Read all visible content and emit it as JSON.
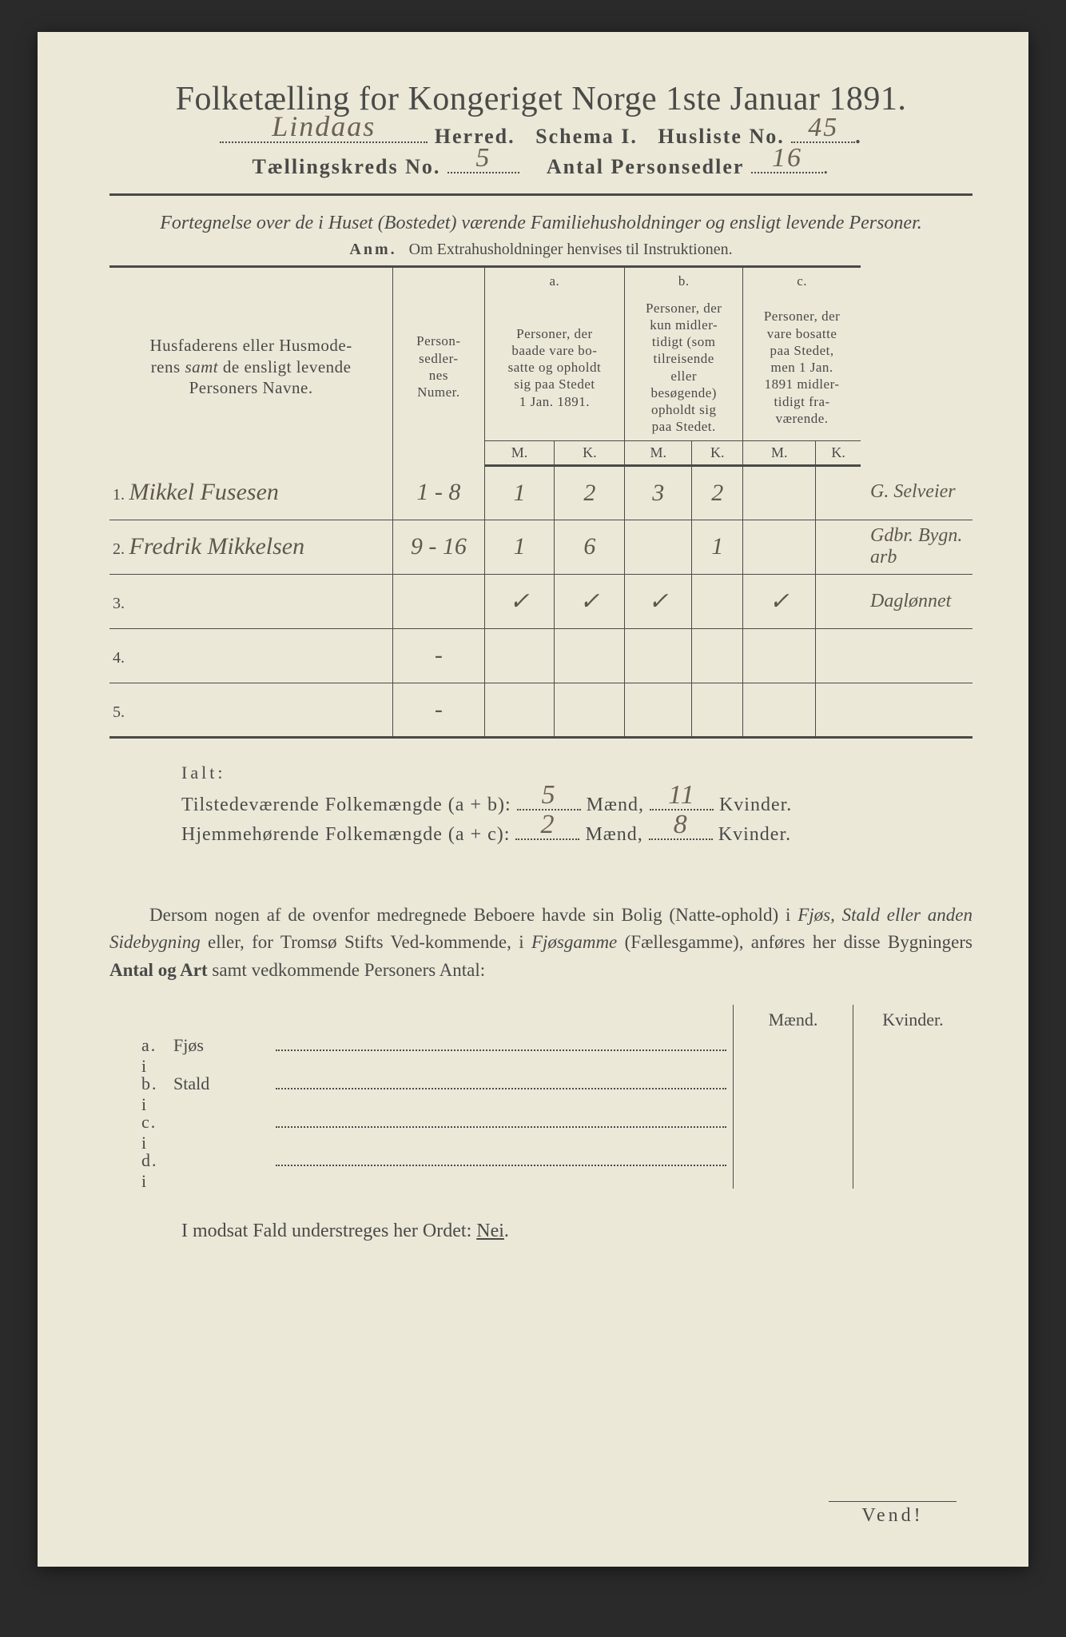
{
  "title": "Folketælling for Kongeriget Norge 1ste Januar 1891.",
  "herred_handwritten": "Lindaas",
  "line2_labels": {
    "herred": "Herred.",
    "schema": "Schema I.",
    "husliste": "Husliste No."
  },
  "husliste_no": "45",
  "line3_labels": {
    "kreds": "Tællingskreds No.",
    "antal": "Antal Personsedler"
  },
  "kreds_no": "5",
  "antal_personsedler": "16",
  "intro": "Fortegnelse over de i Huset (Bostedet) værende Familiehusholdninger og ensligt levende Personer.",
  "anm_label": "Anm.",
  "anm_text": "Om Extrahusholdninger henvises til Instruktionen.",
  "headers": {
    "names": "Husfaderens eller Husmoderens samt de ensligt levende Personers Navne.",
    "numer": "Person-sedler-nes Numer.",
    "a_label": "a.",
    "a_text": "Personer, der baade vare bo-satte og opholdt sig paa Stedet 1 Jan. 1891.",
    "b_label": "b.",
    "b_text": "Personer, der kun midler-tidigt (som tilreisende eller besøgende) opholdt sig paa Stedet.",
    "c_label": "c.",
    "c_text": "Personer, der vare bosatte paa Stedet, men 1 Jan. 1891 midler-tidigt fra-værende.",
    "m": "M.",
    "k": "K."
  },
  "rows": [
    {
      "n": "1.",
      "name": "Mikkel Fusesen",
      "numer": "1 - 8",
      "am": "1",
      "ak": "2",
      "bm": "3",
      "bk": "2",
      "cm": "",
      "ck": "",
      "margin": "G. Selveier"
    },
    {
      "n": "2.",
      "name": "Fredrik Mikkelsen",
      "numer": "9 - 16",
      "am": "1",
      "ak": "6",
      "bm": "",
      "bk": "1",
      "cm": "",
      "ck": "",
      "margin": "Gdbr. Bygn. arb"
    },
    {
      "n": "3.",
      "name": "",
      "numer": "",
      "am": "✓",
      "ak": "✓",
      "bm": "✓",
      "bk": "",
      "cm": "✓",
      "ck": "",
      "margin": "Daglønnet"
    },
    {
      "n": "4.",
      "name": "",
      "numer": "-",
      "am": "",
      "ak": "",
      "bm": "",
      "bk": "",
      "cm": "",
      "ck": "",
      "margin": ""
    },
    {
      "n": "5.",
      "name": "",
      "numer": "-",
      "am": "",
      "ak": "",
      "bm": "",
      "bk": "",
      "cm": "",
      "ck": "",
      "margin": ""
    }
  ],
  "totals": {
    "ialt": "Ialt:",
    "tilstede_label": "Tilstedeværende Folkemængde (a + b):",
    "hjemme_label": "Hjemmehørende Folkemængde (a + c):",
    "maend": "Mænd,",
    "kvinder": "Kvinder.",
    "tilstede_m": "5",
    "tilstede_k": "11",
    "hjemme_m": "2",
    "hjemme_k": "8"
  },
  "paragraph": "Dersom nogen af de ovenfor medregnede Beboere havde sin Bolig (Natte-ophold) i Fjøs, Stald eller anden Sidebygning eller, for Tromsø Stifts Ved-kommende, i Fjøsgamme (Fællesgamme), anføres her disse Bygningers Antal og Art samt vedkommende Personers Antal:",
  "outbuildings": {
    "maend": "Mænd.",
    "kvinder": "Kvinder.",
    "rows": [
      {
        "label": "a.  i",
        "name": "Fjøs"
      },
      {
        "label": "b.  i",
        "name": "Stald"
      },
      {
        "label": "c.  i",
        "name": ""
      },
      {
        "label": "d.  i",
        "name": ""
      }
    ]
  },
  "final_line": "I modsat Fald understreges her Ordet: Nei.",
  "vend": "Vend!"
}
